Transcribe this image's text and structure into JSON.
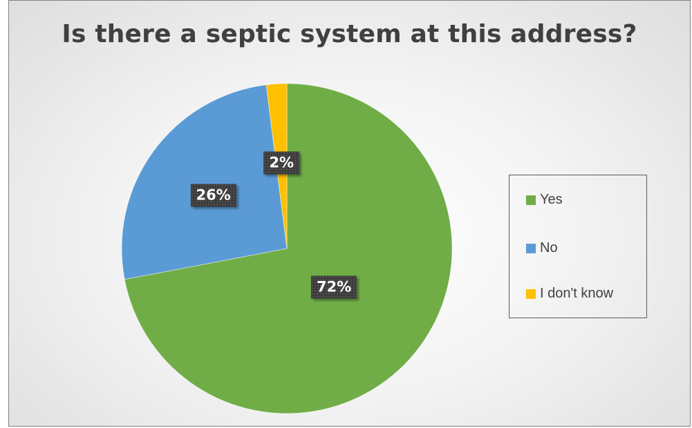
{
  "chart_data": {
    "type": "pie",
    "title": "Is there a septic system at this address?",
    "categories": [
      "Yes",
      "No",
      "I don't know"
    ],
    "values": [
      72,
      26,
      2
    ],
    "labels": [
      "72%",
      "26%",
      "2%"
    ],
    "colors": [
      "#70AD47",
      "#5B9BD5",
      "#FFC000"
    ],
    "start_angle_deg": 0,
    "direction": "clockwise",
    "legend_position": "right"
  }
}
